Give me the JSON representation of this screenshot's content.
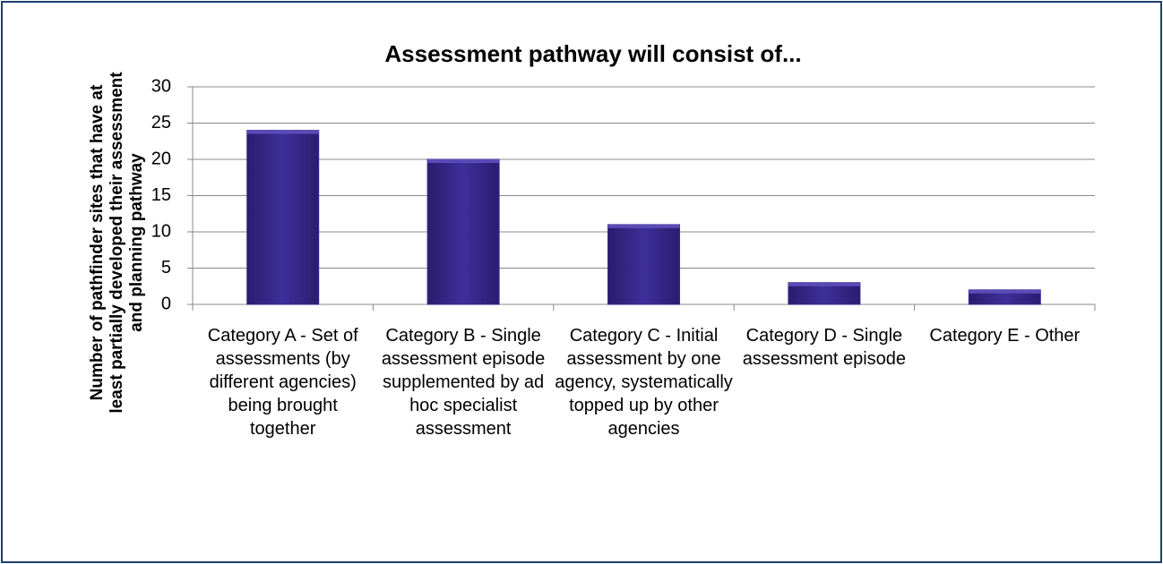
{
  "chart_data": {
    "type": "bar",
    "title": "Assessment pathway will consist of...",
    "y_label": "Number  of pathfinder sites that have at least partially developed their assessment and planning pathway",
    "categories": [
      "Category A - Set of assessments (by different agencies) being brought together",
      "Category B - Single assessment episode supplemented by ad hoc specialist assessment",
      "Category C - Initial assessment by one agency, systematically topped up by other agencies",
      "Category D - Single assessment episode",
      "Category E - Other"
    ],
    "values": [
      24,
      20,
      11,
      3,
      2
    ],
    "color": "#3b2a8f",
    "ylim": [
      0,
      30
    ],
    "yticks": [
      0,
      5,
      10,
      15,
      20,
      25,
      30
    ],
    "grid": true
  }
}
